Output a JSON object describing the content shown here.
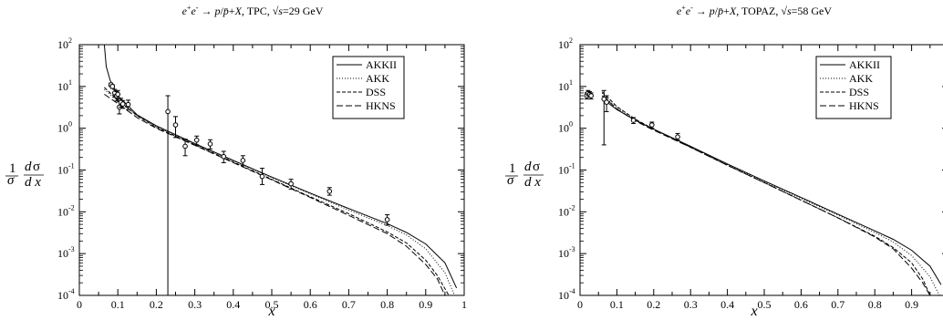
{
  "chart_data": [
    {
      "type": "line",
      "title": "e+e- → p/p̄+X, TPC, √s=29 GeV",
      "xlabel": "x",
      "ylabel": "1/σ dσ/dx",
      "xlim": [
        0,
        1
      ],
      "ylim": [
        0.0001,
        100
      ],
      "yscale": "log",
      "legend": "top-right",
      "x_ticks": [
        "0",
        "0.1",
        "0.2",
        "0.3",
        "0.4",
        "0.5",
        "0.6",
        "0.7",
        "0.8",
        "0.9",
        "1"
      ],
      "y_ticks": [
        {
          "base": "10",
          "exp": "-4"
        },
        {
          "base": "10",
          "exp": "-3"
        },
        {
          "base": "10",
          "exp": "-2"
        },
        {
          "base": "10",
          "exp": "-1"
        },
        {
          "base": "10",
          "exp": "0"
        },
        {
          "base": "10",
          "exp": "1"
        },
        {
          "base": "10",
          "exp": "2"
        }
      ],
      "series": [
        {
          "name": "AKKII",
          "dash": "",
          "points": [
            [
              0.065,
              100
            ],
            [
              0.07,
              30
            ],
            [
              0.08,
              14
            ],
            [
              0.1,
              6
            ],
            [
              0.15,
              2.1
            ],
            [
              0.2,
              1.15
            ],
            [
              0.3,
              0.43
            ],
            [
              0.4,
              0.17
            ],
            [
              0.5,
              0.068
            ],
            [
              0.6,
              0.028
            ],
            [
              0.7,
              0.012
            ],
            [
              0.8,
              0.0052
            ],
            [
              0.85,
              0.0032
            ],
            [
              0.9,
              0.0017
            ],
            [
              0.95,
              0.0006
            ],
            [
              0.98,
              0.00015
            ]
          ]
        },
        {
          "name": "AKK",
          "dash": "1,2",
          "points": [
            [
              0.065,
              8.5
            ],
            [
              0.08,
              6.5
            ],
            [
              0.1,
              4.5
            ],
            [
              0.15,
              2.0
            ],
            [
              0.2,
              1.1
            ],
            [
              0.3,
              0.42
            ],
            [
              0.4,
              0.165
            ],
            [
              0.5,
              0.066
            ],
            [
              0.6,
              0.027
            ],
            [
              0.7,
              0.011
            ],
            [
              0.8,
              0.0047
            ],
            [
              0.85,
              0.0028
            ],
            [
              0.9,
              0.0013
            ],
            [
              0.95,
              0.00035
            ],
            [
              0.975,
              0.0001
            ]
          ]
        },
        {
          "name": "DSS",
          "dash": "4,2",
          "points": [
            [
              0.065,
              9.5
            ],
            [
              0.08,
              7
            ],
            [
              0.1,
              4.8
            ],
            [
              0.15,
              2.0
            ],
            [
              0.2,
              1.05
            ],
            [
              0.3,
              0.4
            ],
            [
              0.4,
              0.155
            ],
            [
              0.5,
              0.06
            ],
            [
              0.6,
              0.023
            ],
            [
              0.7,
              0.009
            ],
            [
              0.8,
              0.0033
            ],
            [
              0.85,
              0.0018
            ],
            [
              0.9,
              0.0007
            ],
            [
              0.93,
              0.0003
            ],
            [
              0.96,
              0.0001
            ]
          ]
        },
        {
          "name": "HKNS",
          "dash": "7,3",
          "points": [
            [
              0.065,
              6.5
            ],
            [
              0.08,
              5.2
            ],
            [
              0.1,
              3.9
            ],
            [
              0.15,
              1.8
            ],
            [
              0.2,
              1.0
            ],
            [
              0.3,
              0.39
            ],
            [
              0.4,
              0.15
            ],
            [
              0.5,
              0.058
            ],
            [
              0.6,
              0.022
            ],
            [
              0.7,
              0.0082
            ],
            [
              0.8,
              0.003
            ],
            [
              0.85,
              0.0015
            ],
            [
              0.9,
              0.00055
            ],
            [
              0.93,
              0.00025
            ],
            [
              0.95,
              0.0001
            ]
          ]
        }
      ],
      "data_points": [
        {
          "x": 0.082,
          "y": 11,
          "lo": 10,
          "hi": 12
        },
        {
          "x": 0.086,
          "y": 10,
          "lo": 9,
          "hi": 11
        },
        {
          "x": 0.092,
          "y": 7,
          "lo": 5.5,
          "hi": 8.5
        },
        {
          "x": 0.097,
          "y": 6,
          "lo": 4.5,
          "hi": 7.5
        },
        {
          "x": 0.1,
          "y": 6.5,
          "lo": 5,
          "hi": 8
        },
        {
          "x": 0.104,
          "y": 3.2,
          "lo": 2.2,
          "hi": 4.3
        },
        {
          "x": 0.108,
          "y": 4.2,
          "lo": 3.2,
          "hi": 5.2
        },
        {
          "x": 0.113,
          "y": 3.8,
          "lo": 3,
          "hi": 4.6
        },
        {
          "x": 0.127,
          "y": 3.7,
          "lo": 2.8,
          "hi": 4.7
        },
        {
          "x": 0.23,
          "y": 2.5,
          "lo": 0.0001,
          "hi": 6
        },
        {
          "x": 0.25,
          "y": 1.2,
          "lo": 0.6,
          "hi": 1.9
        },
        {
          "x": 0.275,
          "y": 0.37,
          "lo": 0.22,
          "hi": 0.55
        },
        {
          "x": 0.305,
          "y": 0.52,
          "lo": 0.4,
          "hi": 0.65
        },
        {
          "x": 0.34,
          "y": 0.42,
          "lo": 0.32,
          "hi": 0.53
        },
        {
          "x": 0.375,
          "y": 0.21,
          "lo": 0.15,
          "hi": 0.28
        },
        {
          "x": 0.425,
          "y": 0.17,
          "lo": 0.13,
          "hi": 0.22
        },
        {
          "x": 0.475,
          "y": 0.07,
          "lo": 0.045,
          "hi": 0.11
        },
        {
          "x": 0.55,
          "y": 0.047,
          "lo": 0.035,
          "hi": 0.06
        },
        {
          "x": 0.65,
          "y": 0.031,
          "lo": 0.025,
          "hi": 0.038
        },
        {
          "x": 0.8,
          "y": 0.0065,
          "lo": 0.0048,
          "hi": 0.0085
        }
      ]
    },
    {
      "type": "line",
      "title": "e+e- → p/p̄+X, TOPAZ, √s=58 GeV",
      "xlabel": "x",
      "ylabel": "1/σ dσ/dx",
      "xlim": [
        0,
        1
      ],
      "ylim": [
        0.0001,
        100
      ],
      "yscale": "log",
      "legend": "top-right",
      "x_ticks": [
        "0",
        "0.1",
        "0.2",
        "0.3",
        "0.4",
        "0.5",
        "0.6",
        "0.7",
        "0.8",
        "0.9"
      ],
      "y_ticks": [
        {
          "base": "10",
          "exp": "-4"
        },
        {
          "base": "10",
          "exp": "-3"
        },
        {
          "base": "10",
          "exp": "-2"
        },
        {
          "base": "10",
          "exp": "-1"
        },
        {
          "base": "10",
          "exp": "0"
        },
        {
          "base": "10",
          "exp": "1"
        },
        {
          "base": "10",
          "exp": "2"
        }
      ],
      "series": [
        {
          "name": "AKKII",
          "dash": "",
          "points": [
            [
              0.06,
              5
            ],
            [
              0.08,
              3.8
            ],
            [
              0.1,
              2.8
            ],
            [
              0.15,
              1.55
            ],
            [
              0.2,
              0.95
            ],
            [
              0.3,
              0.37
            ],
            [
              0.4,
              0.14
            ],
            [
              0.5,
              0.055
            ],
            [
              0.6,
              0.022
            ],
            [
              0.7,
              0.0088
            ],
            [
              0.8,
              0.0035
            ],
            [
              0.85,
              0.0022
            ],
            [
              0.9,
              0.0012
            ],
            [
              0.95,
              0.0005
            ],
            [
              0.98,
              0.00018
            ]
          ]
        },
        {
          "name": "AKK",
          "dash": "1,2",
          "points": [
            [
              0.06,
              7
            ],
            [
              0.08,
              4.5
            ],
            [
              0.1,
              3.1
            ],
            [
              0.15,
              1.6
            ],
            [
              0.2,
              0.95
            ],
            [
              0.3,
              0.36
            ],
            [
              0.4,
              0.135
            ],
            [
              0.5,
              0.053
            ],
            [
              0.6,
              0.021
            ],
            [
              0.7,
              0.0083
            ],
            [
              0.8,
              0.0032
            ],
            [
              0.85,
              0.0019
            ],
            [
              0.9,
              0.0009
            ],
            [
              0.95,
              0.00028
            ],
            [
              0.975,
              0.0001
            ]
          ]
        },
        {
          "name": "DSS",
          "dash": "4,2",
          "points": [
            [
              0.06,
              7.5
            ],
            [
              0.08,
              5
            ],
            [
              0.1,
              3.3
            ],
            [
              0.15,
              1.65
            ],
            [
              0.2,
              0.95
            ],
            [
              0.3,
              0.35
            ],
            [
              0.4,
              0.13
            ],
            [
              0.5,
              0.05
            ],
            [
              0.6,
              0.019
            ],
            [
              0.7,
              0.0072
            ],
            [
              0.8,
              0.0026
            ],
            [
              0.85,
              0.0014
            ],
            [
              0.9,
              0.0006
            ],
            [
              0.93,
              0.00025
            ],
            [
              0.95,
              0.0001
            ]
          ]
        },
        {
          "name": "HKNS",
          "dash": "7,3",
          "points": [
            [
              0.06,
              6
            ],
            [
              0.08,
              4.2
            ],
            [
              0.1,
              2.9
            ],
            [
              0.15,
              1.5
            ],
            [
              0.2,
              0.9
            ],
            [
              0.3,
              0.35
            ],
            [
              0.4,
              0.13
            ],
            [
              0.5,
              0.05
            ],
            [
              0.6,
              0.019
            ],
            [
              0.7,
              0.0072
            ],
            [
              0.8,
              0.0025
            ],
            [
              0.85,
              0.0013
            ],
            [
              0.9,
              0.00045
            ],
            [
              0.93,
              0.0002
            ],
            [
              0.95,
              0.0001
            ]
          ]
        }
      ],
      "data_points": [
        {
          "x": 0.018,
          "y": 6,
          "lo": 5,
          "hi": 7
        },
        {
          "x": 0.022,
          "y": 7,
          "lo": 6,
          "hi": 8
        },
        {
          "x": 0.026,
          "y": 6.5,
          "lo": 5.5,
          "hi": 7.5
        },
        {
          "x": 0.03,
          "y": 6,
          "lo": 5,
          "hi": 7
        },
        {
          "x": 0.065,
          "y": 5,
          "lo": 0.4,
          "hi": 8
        },
        {
          "x": 0.072,
          "y": 4.2,
          "lo": 2.5,
          "hi": 6
        },
        {
          "x": 0.145,
          "y": 1.55,
          "lo": 1.3,
          "hi": 1.8
        },
        {
          "x": 0.195,
          "y": 1.2,
          "lo": 1.0,
          "hi": 1.4
        },
        {
          "x": 0.265,
          "y": 0.62,
          "lo": 0.52,
          "hi": 0.75
        }
      ]
    }
  ]
}
